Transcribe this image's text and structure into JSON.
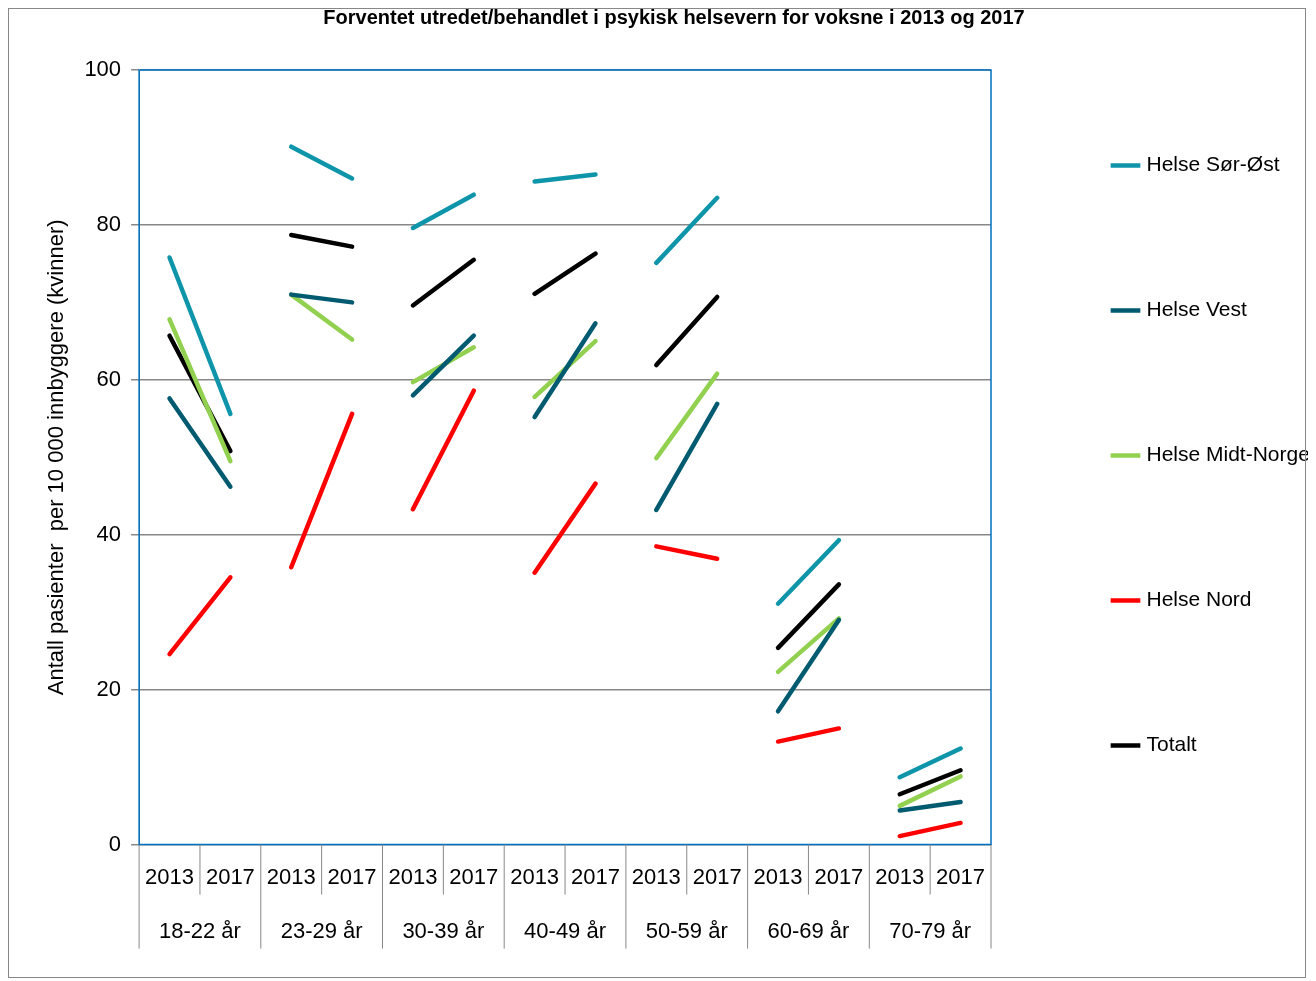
{
  "chart_data": {
    "type": "line",
    "title": "Forventet utredet/behandlet i psykisk helsevern for voksne i 2013 og 2017",
    "ylabel": "Antall pasienter  per 10 000 innbyggere (kvinner)",
    "categories": [
      "2013",
      "2017",
      "2013",
      "2017",
      "2013",
      "2017",
      "2013",
      "2017",
      "2013",
      "2017",
      "2013",
      "2017",
      "2013",
      "2017"
    ],
    "annotations": [
      "18-22 år",
      "23-29 år",
      "30-39 år",
      "40-49 år",
      "50-59 år",
      "60-69 år",
      "70-79 år"
    ],
    "series": [
      {
        "name": "Helse Sør-Øst",
        "color": "#0e95aa",
        "values": [
          75.8,
          55.6,
          90.1,
          86,
          79.6,
          83.9,
          85.6,
          86.5,
          75.1,
          83.5,
          31.1,
          39.3,
          8.7,
          12.4
        ]
      },
      {
        "name": "Helse Vest",
        "color": "#005a70",
        "values": [
          57.6,
          46.2,
          71,
          70,
          58,
          65.7,
          55.2,
          67.3,
          43.2,
          56.9,
          17.2,
          29,
          4.4,
          5.5
        ]
      },
      {
        "name": "Helse Midt-Norge",
        "color": "#92d050",
        "values": [
          67.8,
          49.5,
          71,
          65.2,
          59.7,
          64.2,
          57.8,
          65,
          49.9,
          60.8,
          22.3,
          29.2,
          5,
          8.8
        ]
      },
      {
        "name": "Helse Nord",
        "color": "#ff0000",
        "values": [
          24.6,
          34.5,
          35.8,
          55.6,
          43.3,
          58.6,
          35.1,
          46.6,
          38.5,
          36.9,
          13.3,
          15,
          1.1,
          2.8
        ]
      },
      {
        "name": "Totalt",
        "color": "#000000",
        "values": [
          65.7,
          50.8,
          78.7,
          77.2,
          69.6,
          75.5,
          71.1,
          76.3,
          61.9,
          70.7,
          25.4,
          33.6,
          6.5,
          9.6
        ]
      }
    ],
    "ylim": [
      0,
      100
    ],
    "yticks": [
      0,
      20,
      40,
      60,
      80,
      100
    ],
    "grid": "y",
    "legend": "right",
    "marker": "none",
    "line_style": "solid"
  }
}
